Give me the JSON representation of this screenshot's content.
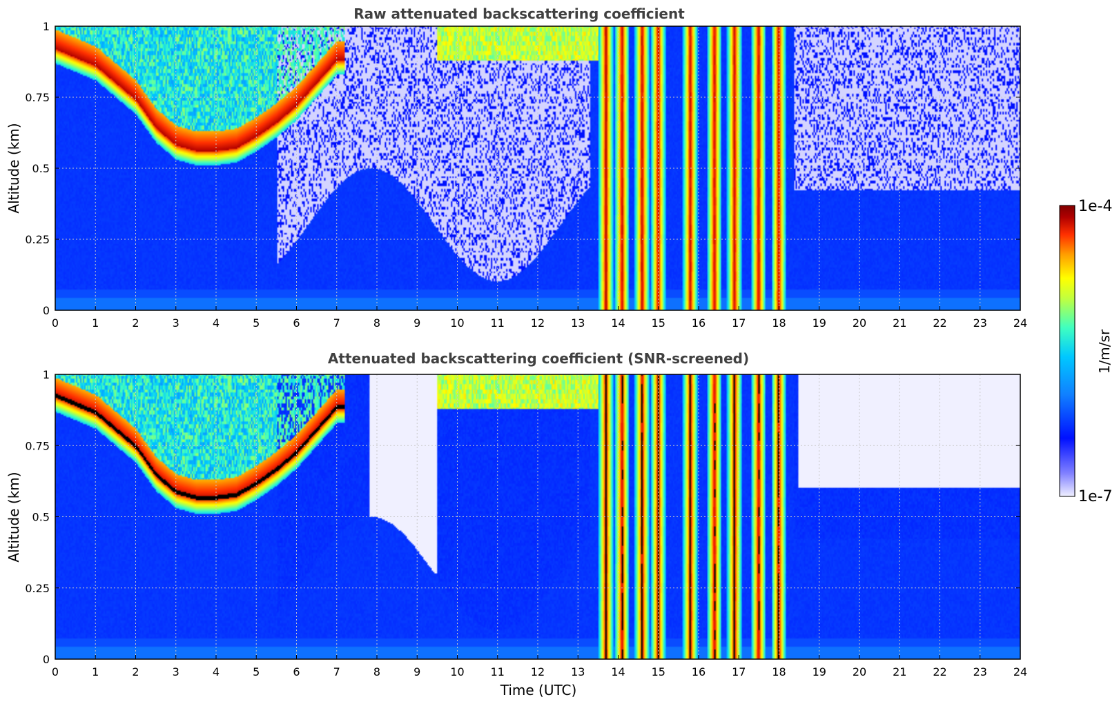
{
  "chart_data": [
    {
      "type": "heatmap",
      "title": "Raw attenuated backscattering coefficient",
      "xlabel": "",
      "ylabel": "Altitude (km)",
      "xlim": [
        0,
        24
      ],
      "ylim": [
        0,
        1
      ],
      "x_ticks": [
        "0",
        "1",
        "2",
        "3",
        "4",
        "5",
        "6",
        "7",
        "8",
        "9",
        "10",
        "11",
        "12",
        "13",
        "14",
        "15",
        "16",
        "17",
        "18",
        "19",
        "20",
        "21",
        "22",
        "23",
        "24"
      ],
      "y_ticks": [
        "0",
        "0.25",
        "0.5",
        "0.75",
        "1"
      ],
      "grid": true,
      "features": {
        "cloud_layer_times": [
          0.0,
          1.0,
          2.0,
          2.5,
          3.0,
          3.5,
          4.0,
          4.5,
          5.0,
          5.5,
          6.0,
          6.5,
          7.0
        ],
        "cloud_layer_altitudes_km": [
          0.92,
          0.86,
          0.74,
          0.64,
          0.58,
          0.56,
          0.56,
          0.57,
          0.61,
          0.66,
          0.72,
          0.8,
          0.88
        ],
        "precipitation_columns_utc": [
          13.7,
          14.1,
          14.6,
          15.0,
          15.8,
          16.4,
          16.9,
          17.5,
          18.0
        ],
        "noisy_upper_region_utc": [
          [
            5.5,
            13.3
          ],
          [
            18.4,
            24
          ]
        ]
      }
    },
    {
      "type": "heatmap",
      "title": "Attenuated backscattering coefficient (SNR-screened)",
      "xlabel": "Time (UTC)",
      "ylabel": "Altitude (km)",
      "xlim": [
        0,
        24
      ],
      "ylim": [
        0,
        1
      ],
      "x_ticks": [
        "0",
        "1",
        "2",
        "3",
        "4",
        "5",
        "6",
        "7",
        "8",
        "9",
        "10",
        "11",
        "12",
        "13",
        "14",
        "15",
        "16",
        "17",
        "18",
        "19",
        "20",
        "21",
        "22",
        "23",
        "24"
      ],
      "y_ticks": [
        "0",
        "0.25",
        "0.5",
        "0.75",
        "1"
      ],
      "grid": true,
      "features": {
        "screened_gap_utc": [
          [
            7.8,
            9.5
          ],
          [
            18.5,
            24
          ]
        ],
        "precipitation_columns_utc": [
          13.7,
          14.1,
          14.6,
          15.0,
          15.8,
          16.4,
          16.9,
          17.5,
          18.0
        ]
      }
    }
  ],
  "colorbar": {
    "label": "1/m/sr",
    "max_label": "1e-4",
    "min_label": "1e-7",
    "scale": "log",
    "colormap": "jet",
    "colors": [
      "#f0f0ff",
      "#8080ff",
      "#0010ff",
      "#1080ff",
      "#00c8ff",
      "#40ffc0",
      "#c0ff40",
      "#ffff00",
      "#ffa000",
      "#ff3000",
      "#b00000",
      "#800000"
    ]
  }
}
